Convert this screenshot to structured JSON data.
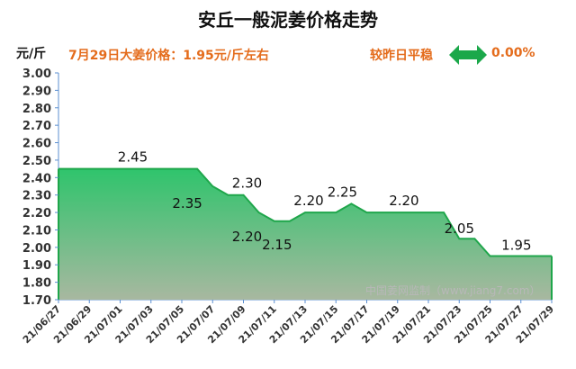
{
  "header": {
    "title": "安丘一般泥姜价格走势",
    "unit": "元/斤",
    "price_text": "7月29日大姜价格：1.95元/斤左右",
    "trend_label": "较昨日平稳",
    "trend_percent": "0.00%",
    "trend_icon": "double-arrow-icon",
    "trend_color": "#1ba84a",
    "accent_color": "#e46c1c"
  },
  "watermark": "中国姜网监制（www.jiang7.com）",
  "chart_data": {
    "type": "area",
    "title": "安丘一般泥姜价格走势",
    "ylabel": "元/斤",
    "xlabel": "",
    "ylim": [
      1.7,
      3.0
    ],
    "grid": false,
    "y_ticks": [
      "1.70",
      "1.80",
      "1.90",
      "2.00",
      "2.10",
      "2.20",
      "2.30",
      "2.40",
      "2.50",
      "2.60",
      "2.70",
      "2.80",
      "2.90",
      "3.00"
    ],
    "x_tick_labels": [
      "21/06/27",
      "21/06/29",
      "21/07/01",
      "21/07/03",
      "21/07/05",
      "21/07/07",
      "21/07/09",
      "21/07/11",
      "21/07/13",
      "21/07/15",
      "21/07/17",
      "21/07/19",
      "21/07/21",
      "21/07/23",
      "21/07/25",
      "21/07/27",
      "21/07/29"
    ],
    "series": [
      {
        "name": "安丘一般泥姜价格",
        "x": [
          "21/06/27",
          "21/06/28",
          "21/06/29",
          "21/06/30",
          "21/07/01",
          "21/07/02",
          "21/07/03",
          "21/07/04",
          "21/07/05",
          "21/07/06",
          "21/07/07",
          "21/07/08",
          "21/07/09",
          "21/07/10",
          "21/07/11",
          "21/07/12",
          "21/07/13",
          "21/07/14",
          "21/07/15",
          "21/07/16",
          "21/07/17",
          "21/07/18",
          "21/07/19",
          "21/07/20",
          "21/07/21",
          "21/07/22",
          "21/07/23",
          "21/07/24",
          "21/07/25",
          "21/07/26",
          "21/07/27",
          "21/07/28",
          "21/07/29"
        ],
        "values": [
          2.45,
          2.45,
          2.45,
          2.45,
          2.45,
          2.45,
          2.45,
          2.45,
          2.45,
          2.45,
          2.35,
          2.3,
          2.3,
          2.2,
          2.15,
          2.15,
          2.2,
          2.2,
          2.2,
          2.25,
          2.2,
          2.2,
          2.2,
          2.2,
          2.2,
          2.2,
          2.05,
          2.05,
          1.95,
          1.95,
          1.95,
          1.95,
          1.95
        ]
      }
    ],
    "data_labels": [
      {
        "text": "2.45",
        "x": "21/07/01",
        "value": 2.45
      },
      {
        "text": "2.35",
        "x": "21/07/06",
        "value": 2.35
      },
      {
        "text": "2.30",
        "x": "21/07/09",
        "value": 2.3
      },
      {
        "text": "2.20",
        "x": "21/07/09",
        "value": 2.2
      },
      {
        "text": "2.15",
        "x": "21/07/11",
        "value": 2.15
      },
      {
        "text": "2.20",
        "x": "21/07/13",
        "value": 2.2
      },
      {
        "text": "2.25",
        "x": "21/07/16",
        "value": 2.25
      },
      {
        "text": "2.20",
        "x": "21/07/20",
        "value": 2.2
      },
      {
        "text": "2.05",
        "x": "21/07/23",
        "value": 2.05
      },
      {
        "text": "1.95",
        "x": "21/07/27",
        "value": 1.95
      }
    ],
    "colors": {
      "line": "#1fa64b",
      "fill_top": "#2fc46c",
      "fill_bottom": "#a8b8a0",
      "axis": "#5b8fd0"
    }
  }
}
